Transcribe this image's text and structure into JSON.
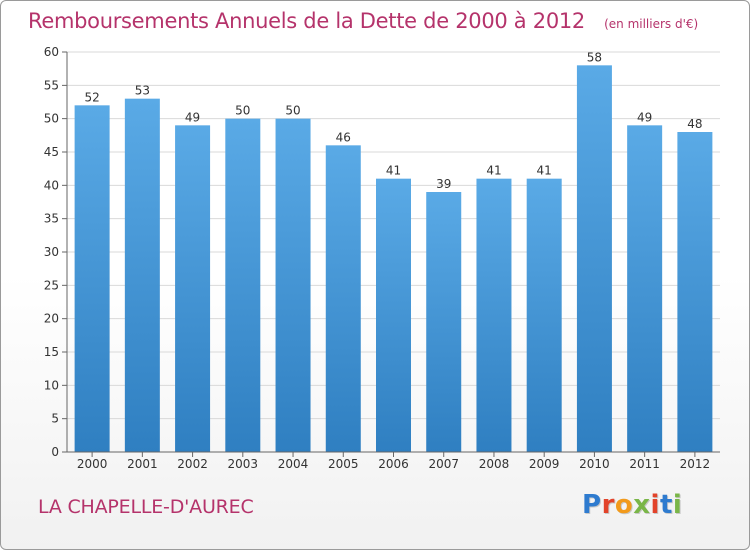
{
  "header": {
    "title": "Remboursements Annuels de la Dette de 2000 à 2012",
    "unit": "(en milliers d'€)"
  },
  "footer": {
    "city": "LA CHAPELLE-D'AUREC",
    "logo": {
      "text": "Proxiti",
      "colors": [
        "#2e7bcf",
        "#e2432a",
        "#f29a1b",
        "#7ab648",
        "#e2432a",
        "#2e7bcf",
        "#7ab648"
      ]
    }
  },
  "chart_data": {
    "type": "bar",
    "categories": [
      "2000",
      "2001",
      "2002",
      "2003",
      "2004",
      "2005",
      "2006",
      "2007",
      "2008",
      "2009",
      "2010",
      "2011",
      "2012"
    ],
    "values": [
      52,
      53,
      49,
      50,
      50,
      46,
      41,
      39,
      41,
      41,
      58,
      49,
      48
    ],
    "ylim": [
      0,
      60
    ],
    "yticks": [
      0,
      5,
      10,
      15,
      20,
      25,
      30,
      35,
      40,
      45,
      50,
      55,
      60
    ],
    "grid": true,
    "data_labels": true,
    "colors": {
      "bar_top": "#5aaae6",
      "bar_bottom": "#2f7fc1",
      "grid": "#d9d9d9",
      "label": "#333333"
    }
  }
}
